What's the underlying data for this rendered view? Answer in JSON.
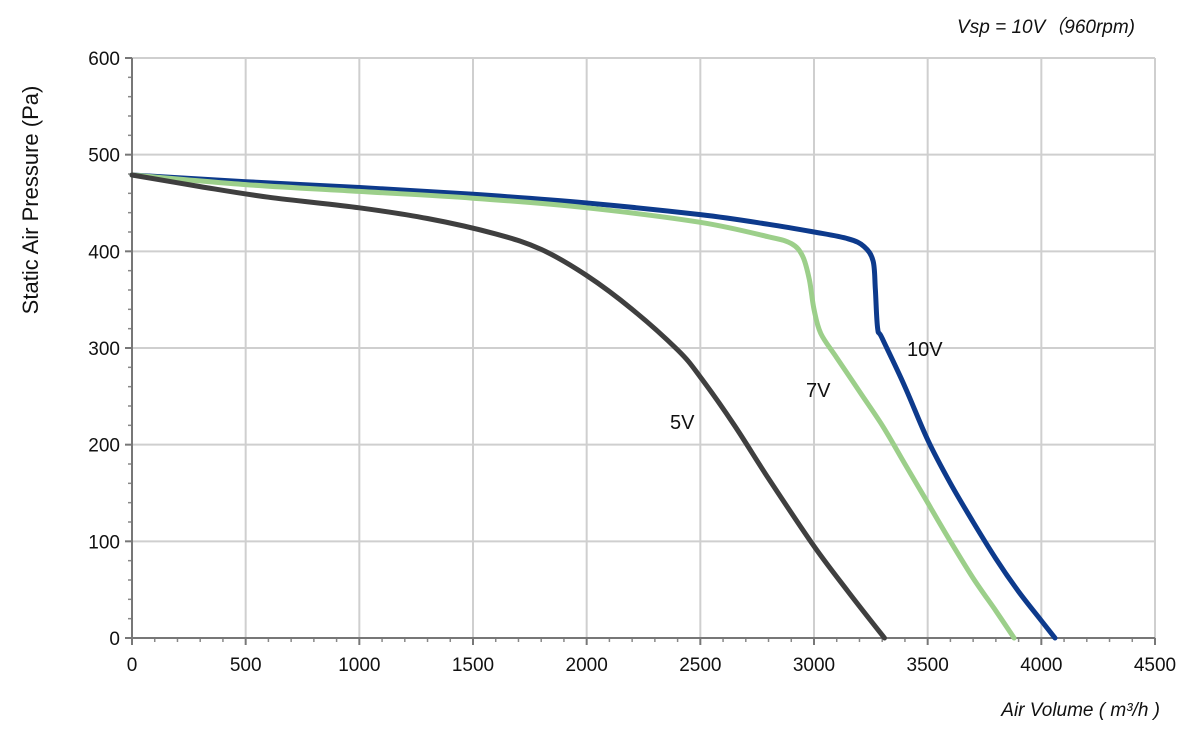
{
  "chart_data": {
    "type": "line",
    "annotation": "Vsp = 10V（960rpm)",
    "xlabel": "Air Volume ( m³/h )",
    "ylabel": "Static Air Pressure  (Pa)",
    "xlim": [
      0,
      4500
    ],
    "ylim": [
      0,
      600
    ],
    "xticks": [
      0,
      500,
      1000,
      1500,
      2000,
      2500,
      3000,
      3500,
      4000,
      4500
    ],
    "yticks": [
      0,
      100,
      200,
      300,
      400,
      500,
      600
    ],
    "grid": true,
    "series": [
      {
        "name": "10V",
        "color": "#0d3a8c",
        "points": [
          [
            0,
            479
          ],
          [
            500,
            472
          ],
          [
            1000,
            466
          ],
          [
            1500,
            459
          ],
          [
            2000,
            450
          ],
          [
            2500,
            438
          ],
          [
            2800,
            428
          ],
          [
            3000,
            420
          ],
          [
            3150,
            413
          ],
          [
            3220,
            405
          ],
          [
            3260,
            390
          ],
          [
            3270,
            360
          ],
          [
            3280,
            320
          ],
          [
            3300,
            310
          ],
          [
            3400,
            260
          ],
          [
            3500,
            205
          ],
          [
            3600,
            160
          ],
          [
            3700,
            120
          ],
          [
            3800,
            82
          ],
          [
            3900,
            48
          ],
          [
            4000,
            18
          ],
          [
            4060,
            0
          ]
        ]
      },
      {
        "name": "7V",
        "color": "#9ccf8a",
        "points": [
          [
            0,
            479
          ],
          [
            500,
            469
          ],
          [
            1000,
            462
          ],
          [
            1500,
            455
          ],
          [
            2000,
            445
          ],
          [
            2500,
            430
          ],
          [
            2800,
            415
          ],
          [
            2900,
            408
          ],
          [
            2950,
            395
          ],
          [
            2980,
            370
          ],
          [
            3000,
            340
          ],
          [
            3030,
            315
          ],
          [
            3100,
            290
          ],
          [
            3200,
            255
          ],
          [
            3300,
            220
          ],
          [
            3400,
            180
          ],
          [
            3500,
            140
          ],
          [
            3600,
            100
          ],
          [
            3700,
            62
          ],
          [
            3800,
            28
          ],
          [
            3880,
            0
          ]
        ]
      },
      {
        "name": "5V",
        "color": "#3f3f3f",
        "points": [
          [
            0,
            479
          ],
          [
            300,
            467
          ],
          [
            600,
            456
          ],
          [
            1000,
            445
          ],
          [
            1300,
            434
          ],
          [
            1600,
            418
          ],
          [
            1800,
            402
          ],
          [
            2000,
            375
          ],
          [
            2200,
            340
          ],
          [
            2400,
            298
          ],
          [
            2500,
            270
          ],
          [
            2650,
            220
          ],
          [
            2800,
            165
          ],
          [
            3000,
            95
          ],
          [
            3150,
            48
          ],
          [
            3310,
            0
          ]
        ]
      }
    ]
  },
  "series_labels": {
    "l10": "10V",
    "l7": "7V",
    "l5": "5V"
  }
}
